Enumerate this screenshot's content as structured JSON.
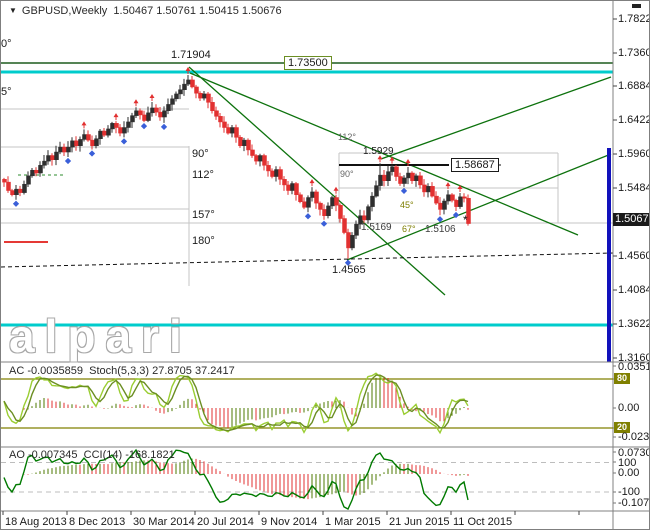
{
  "window": {
    "symbol": "GBPUSD,Weekly",
    "ohlc_line": "1.50467 1.50761 1.50415 1.50676",
    "dropdown_icon": "▼"
  },
  "watermark": "alpari",
  "price_axis": {
    "labels": [
      "1.78228",
      "1.73608",
      "1.68848",
      "1.64228",
      "1.59608",
      "1.54848",
      "1.45608",
      "1.40848",
      "1.36228",
      "1.31608"
    ],
    "current_price": "1.50676"
  },
  "time_axis": {
    "labels": [
      "18 Aug 2013",
      "8 Dec 2013",
      "30 Mar 2014",
      "20 Jul 2014",
      "9 Nov 2014",
      "1 Mar 2015",
      "21 Jun 2015",
      "11 Oct 2015"
    ]
  },
  "chart_labels": {
    "peak_price": "1.71904",
    "boxed_level": "1.73500",
    "resistance_level": "1.58687",
    "swing_high": "1.5929",
    "minor_level_1": "1.5169",
    "minor_level_2": "1.5106",
    "major_low": "1.4565",
    "gann_left_edge": [
      "0°",
      "5°"
    ],
    "gann_left_column": [
      "90°",
      "112°",
      "157°",
      "180°"
    ],
    "gann_right_small": [
      "112°",
      "90°",
      "45°",
      "67°"
    ],
    "last_bar_marker": "*"
  },
  "panel1": {
    "name": "AC",
    "value": "-0.0035859",
    "name2": "Stoch(5,3,3)",
    "value2": "27.8705",
    "value3": "37.2417",
    "axis_max": "0.035148",
    "level_high": "80",
    "axis_zero": "0.00",
    "level_low": "20",
    "axis_min": "-0.023755"
  },
  "panel2": {
    "name": "AO",
    "value": "-0.007345",
    "name2": "CCI(14)",
    "value2": "-168.1821",
    "axis_max": "0.073085",
    "level_high": "100",
    "axis_zero": "0.00",
    "level_low": "-100",
    "axis_min": "-0.107361"
  },
  "colors": {
    "bull": "#2e2e2e",
    "bear": "#e23030",
    "trendline": "#0d720d",
    "level_line": "#1d5c1d",
    "cyan_line": "#00cccc",
    "navy_vline": "#1212bb",
    "fractal_up": "#e23030",
    "fractal_down": "#3a5fd9",
    "stoch_main": "#9acd32",
    "stoch_signal": "#6b8e23",
    "cci_line": "#007a00",
    "hist_up": "#4e7a00",
    "hist_down": "#e23030",
    "olive_level": "#808000",
    "silver": "#c6c6c6"
  },
  "chart_data": {
    "type": "candlestick",
    "symbol": "GBPUSD",
    "timeframe": "Weekly",
    "landmarks": {
      "peak_high": 1.71904,
      "major_low": 1.4565,
      "swing_high": 1.5929,
      "last_close": 1.50676
    },
    "closes": [
      1.566,
      1.554,
      1.548,
      1.556,
      1.551,
      1.563,
      1.575,
      1.583,
      1.579,
      1.59,
      1.596,
      1.604,
      1.598,
      1.609,
      1.616,
      1.609,
      1.616,
      1.625,
      1.618,
      1.627,
      1.634,
      1.626,
      1.618,
      1.628,
      1.639,
      1.633,
      1.642,
      1.65,
      1.644,
      1.636,
      1.644,
      1.652,
      1.661,
      1.668,
      1.662,
      1.654,
      1.665,
      1.672,
      1.666,
      1.659,
      1.668,
      1.677,
      1.685,
      1.692,
      1.698,
      1.706,
      1.712,
      1.702,
      1.693,
      1.686,
      1.692,
      1.68,
      1.668,
      1.66,
      1.652,
      1.644,
      1.636,
      1.644,
      1.63,
      1.618,
      1.626,
      1.612,
      1.604,
      1.596,
      1.604,
      1.59,
      1.582,
      1.574,
      1.584,
      1.57,
      1.562,
      1.554,
      1.564,
      1.548,
      1.538,
      1.53,
      1.544,
      1.552,
      1.536,
      1.527,
      1.518,
      1.532,
      1.544,
      1.533,
      1.514,
      1.494,
      1.472,
      1.49,
      1.506,
      1.518,
      1.512,
      1.531,
      1.546,
      1.561,
      1.576,
      1.568,
      1.581,
      1.588,
      1.574,
      1.564,
      1.572,
      1.579,
      1.568,
      1.575,
      1.562,
      1.552,
      1.56,
      1.546,
      1.536,
      1.527,
      1.539,
      1.548,
      1.54,
      1.531,
      1.545,
      1.543,
      1.5068
    ],
    "peak_index": 46,
    "low_index": 86,
    "swing_high_index": 94
  }
}
